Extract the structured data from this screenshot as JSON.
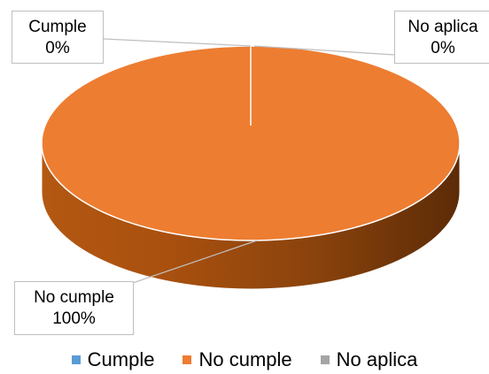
{
  "chart_data": {
    "type": "pie",
    "title": "",
    "categories": [
      "Cumple",
      "No cumple",
      "No aplica"
    ],
    "values": [
      0,
      100,
      0
    ],
    "value_labels": [
      "0%",
      "100%",
      "0%"
    ],
    "colors": [
      "#5b9bd5",
      "#ed7d31",
      "#a5a5a5"
    ],
    "style": "3d",
    "legend_position": "bottom"
  },
  "labels": {
    "cumple": {
      "name": "Cumple",
      "value": "0%"
    },
    "no_cumple": {
      "name": "No cumple",
      "value": "100%"
    },
    "no_aplica": {
      "name": "No aplica",
      "value": "0%"
    }
  },
  "legend": [
    {
      "label": "Cumple",
      "color": "#5b9bd5"
    },
    {
      "label": "No cumple",
      "color": "#ed7d31"
    },
    {
      "label": "No aplica",
      "color": "#a5a5a5"
    }
  ]
}
